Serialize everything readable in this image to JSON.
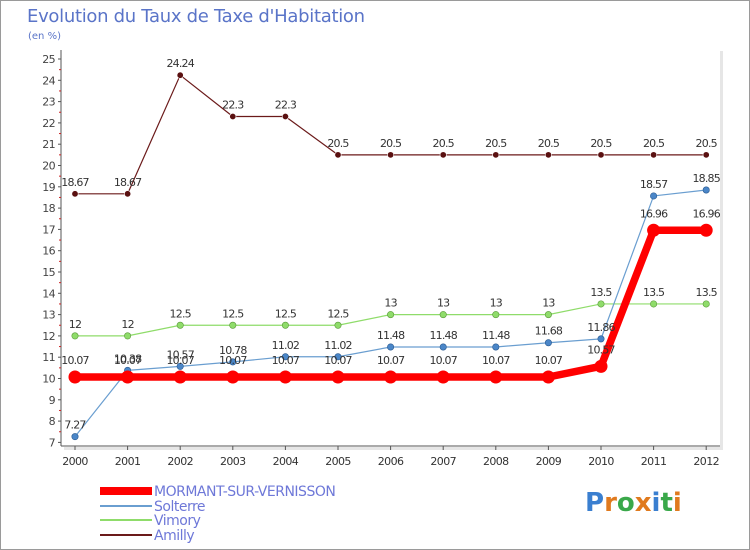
{
  "header": {
    "title": "Evolution du Taux de Taxe d'Habitation",
    "unit": "(en %)"
  },
  "chart_data": {
    "type": "line",
    "title": "Evolution du Taux de Taxe d'Habitation",
    "ylabel": "(en %)",
    "xlabel": "",
    "ylim": [
      7,
      25
    ],
    "yticks": [
      7,
      8,
      9,
      10,
      11,
      12,
      13,
      14,
      15,
      16,
      17,
      18,
      19,
      20,
      21,
      22,
      23,
      24,
      25
    ],
    "x": [
      "2000",
      "2001",
      "2002",
      "2003",
      "2004",
      "2005",
      "2006",
      "2007",
      "2008",
      "2009",
      "2010",
      "2011",
      "2012"
    ],
    "series": [
      {
        "name": "Amilly",
        "color": "#6b1a1a",
        "values": [
          18.67,
          18.67,
          24.24,
          22.3,
          22.3,
          20.5,
          20.5,
          20.5,
          20.5,
          20.5,
          20.5,
          20.5,
          20.5
        ],
        "labels": [
          "18.67",
          "18.67",
          "24.24",
          "22.3",
          "22.3",
          "20.5",
          "20.5",
          "20.5",
          "20.5",
          "20.5",
          "20.5",
          "20.5",
          "20.5"
        ]
      },
      {
        "name": "Vimory",
        "color": "#8fdc6a",
        "values": [
          12,
          12,
          12.5,
          12.5,
          12.5,
          12.5,
          13,
          13,
          13,
          13,
          13.5,
          13.5,
          13.5
        ],
        "labels": [
          "12",
          "12",
          "12.5",
          "12.5",
          "12.5",
          "12.5",
          "13",
          "13",
          "13",
          "13",
          "13.5",
          "13.5",
          "13.5"
        ]
      },
      {
        "name": "Solterre",
        "color": "#6a9ed0",
        "values": [
          7.27,
          10.38,
          10.57,
          10.78,
          11.02,
          11.02,
          11.48,
          11.48,
          11.48,
          11.68,
          11.86,
          18.57,
          18.85
        ],
        "labels": [
          "7.27",
          "10.38",
          "10.57",
          "10.78",
          "11.02",
          "11.02",
          "11.48",
          "11.48",
          "11.48",
          "11.68",
          "11.86",
          "18.57",
          "18.85"
        ]
      },
      {
        "name": "MORMANT-SUR-VERNISSON",
        "color": "#ff0000",
        "values": [
          10.07,
          10.07,
          10.07,
          10.07,
          10.07,
          10.07,
          10.07,
          10.07,
          10.07,
          10.07,
          10.57,
          16.96,
          16.96
        ],
        "labels": [
          "10.07",
          "10.07",
          "10.07",
          "10.07",
          "10.07",
          "10.07",
          "10.07",
          "10.07",
          "10.07",
          "10.07",
          "10.57",
          "16.96",
          "16.96"
        ]
      }
    ],
    "legend_position": "bottom-left",
    "grid": false
  },
  "legend": {
    "items": [
      {
        "label": "MORMANT-SUR-VERNISSON",
        "color": "#ff0000"
      },
      {
        "label": "Solterre",
        "color": "#6a9ed0"
      },
      {
        "label": "Vimory",
        "color": "#8fdc6a"
      },
      {
        "label": "Amilly",
        "color": "#6b1a1a"
      }
    ]
  },
  "brand": {
    "letters": [
      "P",
      "r",
      "o",
      "x",
      "i",
      "t",
      "i"
    ],
    "colors": [
      "#3a7fd0",
      "#e07a1e",
      "#3aa84a",
      "#e07a1e",
      "#3a7fd0",
      "#3aa84a",
      "#e07a1e"
    ]
  }
}
